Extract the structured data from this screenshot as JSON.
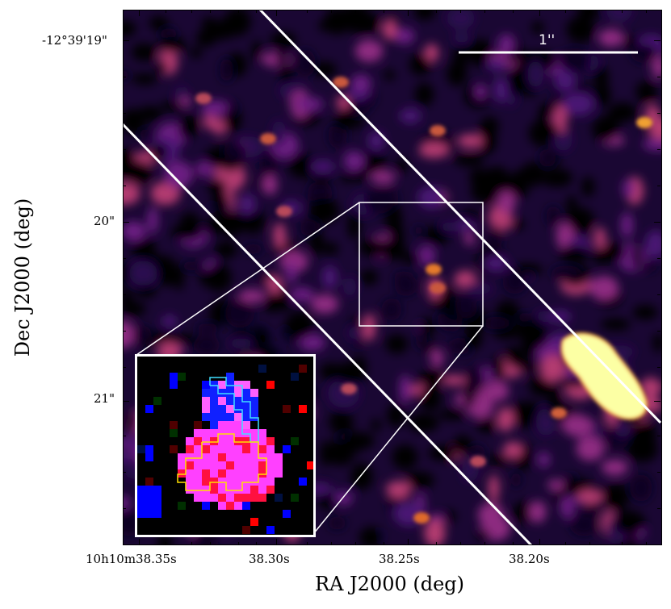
{
  "figure": {
    "x_axis_title": "RA J2000 (deg)",
    "y_axis_title": "Dec J2000 (deg)",
    "x_ticks": [
      "10h10m38.35s",
      "38.30s",
      "38.25s",
      "38.20s"
    ],
    "y_ticks": [
      "-12°39'19\"",
      "20\"",
      "21\""
    ],
    "scale_bar_label": "1''",
    "colormap": "inferno-like (black-purple-orange-yellow)",
    "inset_colors": {
      "red": "#ff0000",
      "green": "#00a000",
      "blue": "#0000ff",
      "magenta": "#ff40ff",
      "cyan_contour": "#40e0ff",
      "yellow_contour": "#ffe000"
    }
  }
}
